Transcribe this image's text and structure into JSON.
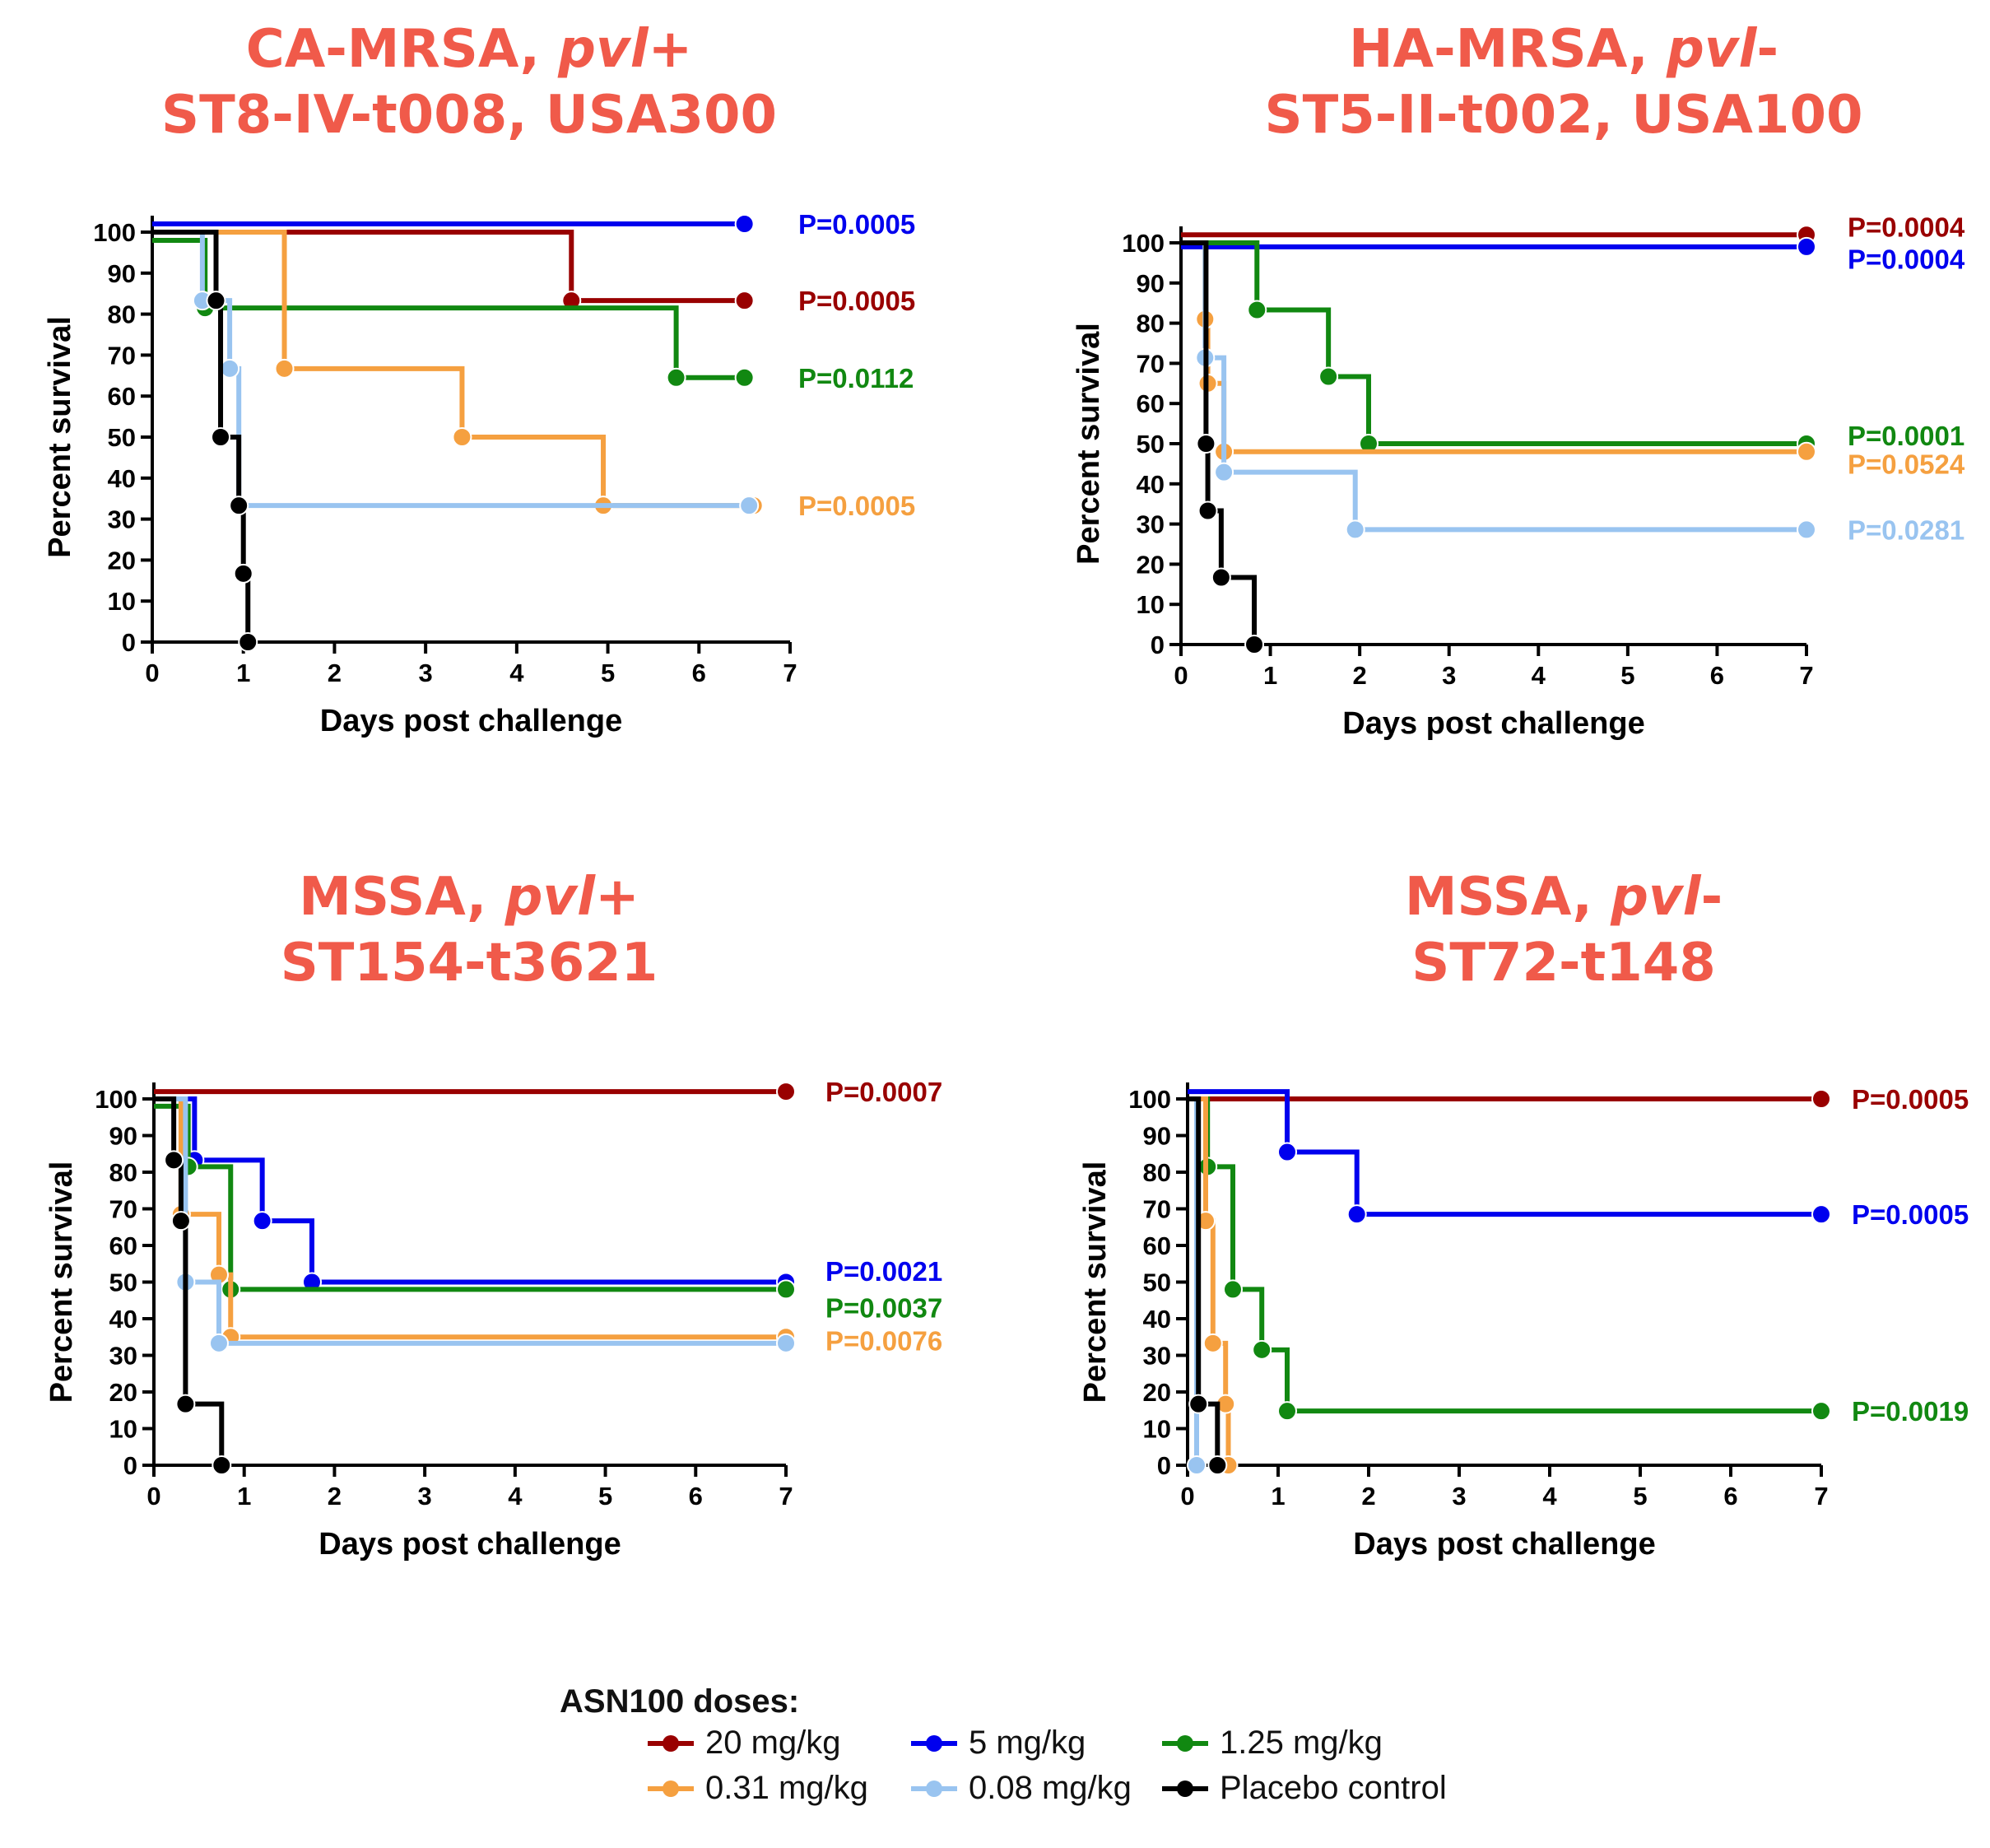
{
  "chart_data": [
    {
      "type": "line",
      "title": [
        "CA-MRSA, pvl+",
        "ST8-IV-t008, USA300"
      ],
      "xlabel": "Days post challenge",
      "ylabel": "Percent survival",
      "xlim": [
        0,
        7
      ],
      "ylim": [
        0,
        100
      ],
      "xticks": [
        0,
        1,
        2,
        3,
        4,
        5,
        6,
        7
      ],
      "yticks": [
        0,
        10,
        20,
        30,
        40,
        50,
        60,
        70,
        80,
        90,
        100
      ],
      "series": [
        {
          "name": "20 mg/kg",
          "color": "#990000",
          "steps": [
            [
              0,
              100
            ],
            [
              4.6,
              83.3
            ],
            [
              6.5,
              83.3
            ]
          ],
          "markers": [
            4.6,
            6.5
          ],
          "pvalue": "P=0.0005",
          "pvalue_y": 83.3
        },
        {
          "name": "5 mg/kg",
          "color": "#0000ee",
          "steps": [
            [
              0,
              102
            ],
            [
              6.5,
              102
            ]
          ],
          "markers": [
            6.5
          ],
          "pvalue": "P=0.0005",
          "pvalue_y": 102
        },
        {
          "name": "1.25 mg/kg",
          "color": "#118811",
          "steps": [
            [
              0,
              98
            ],
            [
              0.58,
              81.5
            ],
            [
              5.75,
              64.5
            ],
            [
              6.5,
              64.5
            ]
          ],
          "markers": [
            0.58,
            5.75,
            6.5
          ],
          "pvalue": "P=0.0112",
          "pvalue_y": 64.5
        },
        {
          "name": "0.31 mg/kg",
          "color": "#f5a040",
          "steps": [
            [
              0,
              100
            ],
            [
              1.45,
              66.7
            ],
            [
              3.4,
              50
            ],
            [
              4.95,
              33.3
            ],
            [
              6.6,
              33.3
            ]
          ],
          "markers": [
            1.45,
            3.4,
            4.95,
            6.6
          ],
          "pvalue": "P=0.0005",
          "pvalue_y": 33.3
        },
        {
          "name": "0.08 mg/kg",
          "color": "#99c4f0",
          "steps": [
            [
              0,
              100
            ],
            [
              0.55,
              83.3
            ],
            [
              0.85,
              66.7
            ],
            [
              0.95,
              33.3
            ],
            [
              6.55,
              33.3
            ]
          ],
          "markers": [
            0.55,
            0.85,
            0.95,
            6.55
          ]
        },
        {
          "name": "Placebo control",
          "color": "#000000",
          "steps": [
            [
              0,
              100
            ],
            [
              0.7,
              83.3
            ],
            [
              0.75,
              50
            ],
            [
              0.95,
              33.3
            ],
            [
              1.0,
              16.7
            ],
            [
              1.05,
              0
            ]
          ],
          "markers": [
            0.7,
            0.75,
            0.95,
            1.0,
            1.05
          ]
        }
      ]
    },
    {
      "type": "line",
      "title": [
        "HA-MRSA, pvl-",
        "ST5-II-t002, USA100"
      ],
      "xlabel": "Days post challenge",
      "ylabel": "Percent survival",
      "xlim": [
        0,
        7
      ],
      "ylim": [
        0,
        100
      ],
      "xticks": [
        0,
        1,
        2,
        3,
        4,
        5,
        6,
        7
      ],
      "yticks": [
        0,
        10,
        20,
        30,
        40,
        50,
        60,
        70,
        80,
        90,
        100
      ],
      "series": [
        {
          "name": "20 mg/kg",
          "color": "#990000",
          "steps": [
            [
              0,
              102
            ],
            [
              7,
              102
            ]
          ],
          "markers": [
            7
          ],
          "pvalue": "P=0.0004",
          "pvalue_y": 104
        },
        {
          "name": "5 mg/kg",
          "color": "#0000ee",
          "steps": [
            [
              0,
              99
            ],
            [
              7,
              99
            ]
          ],
          "markers": [
            7
          ],
          "pvalue": "P=0.0004",
          "pvalue_y": 96
        },
        {
          "name": "1.25 mg/kg",
          "color": "#118811",
          "steps": [
            [
              0,
              100
            ],
            [
              0.85,
              83.3
            ],
            [
              1.65,
              66.7
            ],
            [
              2.1,
              50
            ],
            [
              7,
              50
            ]
          ],
          "markers": [
            0.85,
            1.65,
            2.1,
            7
          ],
          "pvalue": "P=0.0001",
          "pvalue_y": 52
        },
        {
          "name": "0.31 mg/kg",
          "color": "#f5a040",
          "steps": [
            [
              0,
              100
            ],
            [
              0.27,
              81
            ],
            [
              0.3,
              65
            ],
            [
              0.48,
              48
            ],
            [
              7,
              48
            ]
          ],
          "markers": [
            0.27,
            0.3,
            0.48,
            7
          ],
          "pvalue": "P=0.0524",
          "pvalue_y": 45
        },
        {
          "name": "0.08 mg/kg",
          "color": "#99c4f0",
          "steps": [
            [
              0,
              100
            ],
            [
              0.27,
              71.4
            ],
            [
              0.48,
              42.9
            ],
            [
              1.95,
              28.6
            ],
            [
              7,
              28.6
            ]
          ],
          "markers": [
            0.27,
            0.48,
            1.95,
            7
          ],
          "pvalue": "P=0.0281",
          "pvalue_y": 28.6
        },
        {
          "name": "Placebo control",
          "color": "#000000",
          "steps": [
            [
              0,
              100
            ],
            [
              0.28,
              50
            ],
            [
              0.3,
              33.3
            ],
            [
              0.45,
              16.7
            ],
            [
              0.82,
              0
            ]
          ],
          "markers": [
            0.28,
            0.3,
            0.45,
            0.82
          ]
        }
      ]
    },
    {
      "type": "line",
      "title": [
        "MSSA, pvl+",
        "ST154-t3621"
      ],
      "xlabel": "Days post challenge",
      "ylabel": "Percent survival",
      "xlim": [
        0,
        7
      ],
      "ylim": [
        0,
        100
      ],
      "xticks": [
        0,
        1,
        2,
        3,
        4,
        5,
        6,
        7
      ],
      "yticks": [
        0,
        10,
        20,
        30,
        40,
        50,
        60,
        70,
        80,
        90,
        100
      ],
      "series": [
        {
          "name": "20 mg/kg",
          "color": "#990000",
          "steps": [
            [
              0,
              102
            ],
            [
              7,
              102
            ]
          ],
          "markers": [
            7
          ],
          "pvalue": "P=0.0007",
          "pvalue_y": 102
        },
        {
          "name": "5 mg/kg",
          "color": "#0000ee",
          "steps": [
            [
              0,
              100
            ],
            [
              0.45,
              83.3
            ],
            [
              1.2,
              66.7
            ],
            [
              1.75,
              50
            ],
            [
              7,
              50
            ]
          ],
          "markers": [
            0.45,
            1.2,
            1.75,
            7
          ],
          "pvalue": "P=0.0021",
          "pvalue_y": 53
        },
        {
          "name": "1.25 mg/kg",
          "color": "#118811",
          "steps": [
            [
              0,
              98
            ],
            [
              0.38,
              81.5
            ],
            [
              0.85,
              48
            ],
            [
              7,
              48
            ]
          ],
          "markers": [
            0.38,
            0.85,
            7
          ],
          "pvalue": "P=0.0037",
          "pvalue_y": 43
        },
        {
          "name": "0.31 mg/kg",
          "color": "#f5a040",
          "steps": [
            [
              0,
              100
            ],
            [
              0.3,
              68.5
            ],
            [
              0.72,
              52
            ],
            [
              0.85,
              35
            ],
            [
              7,
              35
            ]
          ],
          "markers": [
            0.3,
            0.72,
            0.85,
            7
          ],
          "pvalue": "P=0.0076",
          "pvalue_y": 34
        },
        {
          "name": "0.08 mg/kg",
          "color": "#99c4f0",
          "steps": [
            [
              0,
              100
            ],
            [
              0.35,
              50
            ],
            [
              0.72,
              33.3
            ],
            [
              7,
              33.3
            ]
          ],
          "markers": [
            0.35,
            0.72,
            7
          ]
        },
        {
          "name": "Placebo control",
          "color": "#000000",
          "steps": [
            [
              0,
              100
            ],
            [
              0.22,
              83.3
            ],
            [
              0.3,
              66.7
            ],
            [
              0.35,
              16.7
            ],
            [
              0.75,
              0
            ]
          ],
          "markers": [
            0.22,
            0.3,
            0.35,
            0.75
          ]
        }
      ]
    },
    {
      "type": "line",
      "title": [
        "MSSA, pvl-",
        "ST72-t148"
      ],
      "xlabel": "Days post challenge",
      "ylabel": "Percent survival",
      "xlim": [
        0,
        7
      ],
      "ylim": [
        0,
        100
      ],
      "xticks": [
        0,
        1,
        2,
        3,
        4,
        5,
        6,
        7
      ],
      "yticks": [
        0,
        10,
        20,
        30,
        40,
        50,
        60,
        70,
        80,
        90,
        100
      ],
      "series": [
        {
          "name": "20 mg/kg",
          "color": "#990000",
          "steps": [
            [
              0,
              100
            ],
            [
              7,
              100
            ]
          ],
          "markers": [
            7
          ],
          "pvalue": "P=0.0005",
          "pvalue_y": 100
        },
        {
          "name": "5 mg/kg",
          "color": "#0000ee",
          "steps": [
            [
              0,
              102
            ],
            [
              1.1,
              85.5
            ],
            [
              1.87,
              68.5
            ],
            [
              7,
              68.5
            ]
          ],
          "markers": [
            1.1,
            1.87,
            7
          ],
          "pvalue": "P=0.0005",
          "pvalue_y": 68.5
        },
        {
          "name": "1.25 mg/kg",
          "color": "#118811",
          "steps": [
            [
              0,
              100
            ],
            [
              0.22,
              81.5
            ],
            [
              0.5,
              48
            ],
            [
              0.82,
              31.5
            ],
            [
              1.1,
              14.8
            ],
            [
              7,
              14.8
            ]
          ],
          "markers": [
            0.22,
            0.5,
            0.82,
            1.1,
            7
          ],
          "pvalue": "P=0.0019",
          "pvalue_y": 14.8
        },
        {
          "name": "0.31 mg/kg",
          "color": "#f5a040",
          "steps": [
            [
              0,
              100
            ],
            [
              0.2,
              66.7
            ],
            [
              0.28,
              33.3
            ],
            [
              0.42,
              16.7
            ],
            [
              0.45,
              0
            ]
          ],
          "markers": [
            0.2,
            0.28,
            0.42,
            0.45
          ]
        },
        {
          "name": "0.08 mg/kg",
          "color": "#99c4f0",
          "steps": [
            [
              0,
              100
            ],
            [
              0.1,
              0
            ]
          ],
          "markers": [
            0.1
          ]
        },
        {
          "name": "Placebo control",
          "color": "#000000",
          "steps": [
            [
              0,
              100
            ],
            [
              0.12,
              16.7
            ],
            [
              0.33,
              0
            ]
          ],
          "markers": [
            0.12,
            0.33
          ]
        }
      ]
    }
  ],
  "titles": [
    {
      "line1_plain": "CA-MRSA, ",
      "line1_ital": "pvl",
      "line1_tail": "+",
      "line2": "ST8-IV-t008, USA300"
    },
    {
      "line1_plain": "HA-MRSA, ",
      "line1_ital": "pvl",
      "line1_tail": "-",
      "line2": "ST5-II-t002, USA100"
    },
    {
      "line1_plain": "MSSA, ",
      "line1_ital": "pvl",
      "line1_tail": "+",
      "line2": "ST154-t3621"
    },
    {
      "line1_plain": "MSSA, ",
      "line1_ital": "pvl",
      "line1_tail": "-",
      "line2": "ST72-t148"
    }
  ],
  "legend": {
    "title": "ASN100 doses:",
    "items": [
      {
        "label": "20 mg/kg",
        "color": "#990000"
      },
      {
        "label": "5 mg/kg",
        "color": "#0000ee"
      },
      {
        "label": "1.25 mg/kg",
        "color": "#118811"
      },
      {
        "label": "0.31 mg/kg",
        "color": "#f5a040"
      },
      {
        "label": "0.08 mg/kg",
        "color": "#99c4f0"
      },
      {
        "label": "Placebo control",
        "color": "#000000"
      }
    ]
  }
}
